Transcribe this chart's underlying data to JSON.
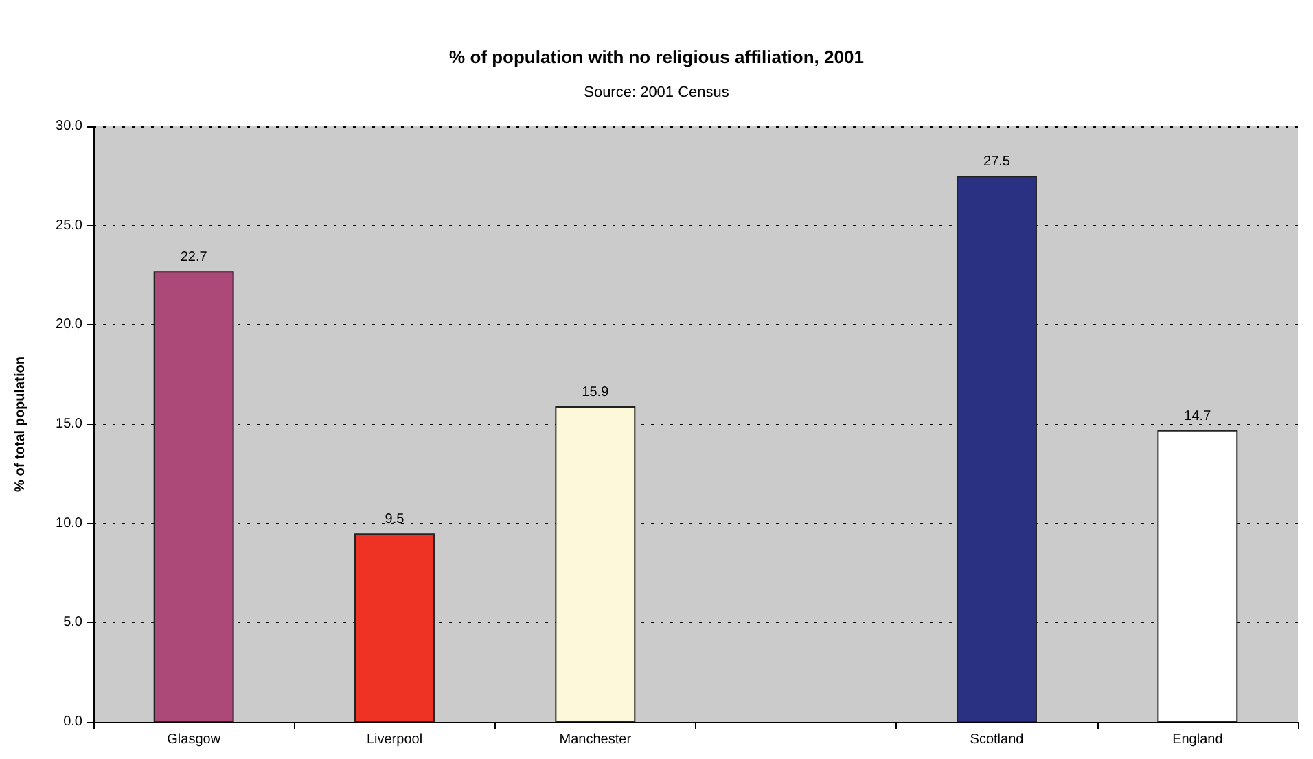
{
  "chart_data": {
    "type": "bar",
    "title": "% of population with no religious affiliation, 2001",
    "subtitle": "Source: 2001 Census",
    "ylabel": "% of total population",
    "categories": [
      "Glasgow",
      "Liverpool",
      "Manchester",
      null,
      "Scotland",
      "England"
    ],
    "values": [
      22.7,
      9.5,
      15.9,
      null,
      27.5,
      14.7
    ],
    "colors": [
      "#ac4979",
      "#ee3324",
      "#fdf8da",
      null,
      "#2a3183",
      "#ffffff"
    ],
    "ylim": [
      0,
      30
    ],
    "yticks": [
      {
        "value": 0,
        "label": "0.0"
      },
      {
        "value": 5,
        "label": "5.0"
      },
      {
        "value": 10,
        "label": "10.0"
      },
      {
        "value": 15,
        "label": "15.0"
      },
      {
        "value": 20,
        "label": "20.0"
      },
      {
        "value": 25,
        "label": "25.0"
      },
      {
        "value": 30,
        "label": "30.0"
      }
    ],
    "grid": "y",
    "data_labels": true
  }
}
